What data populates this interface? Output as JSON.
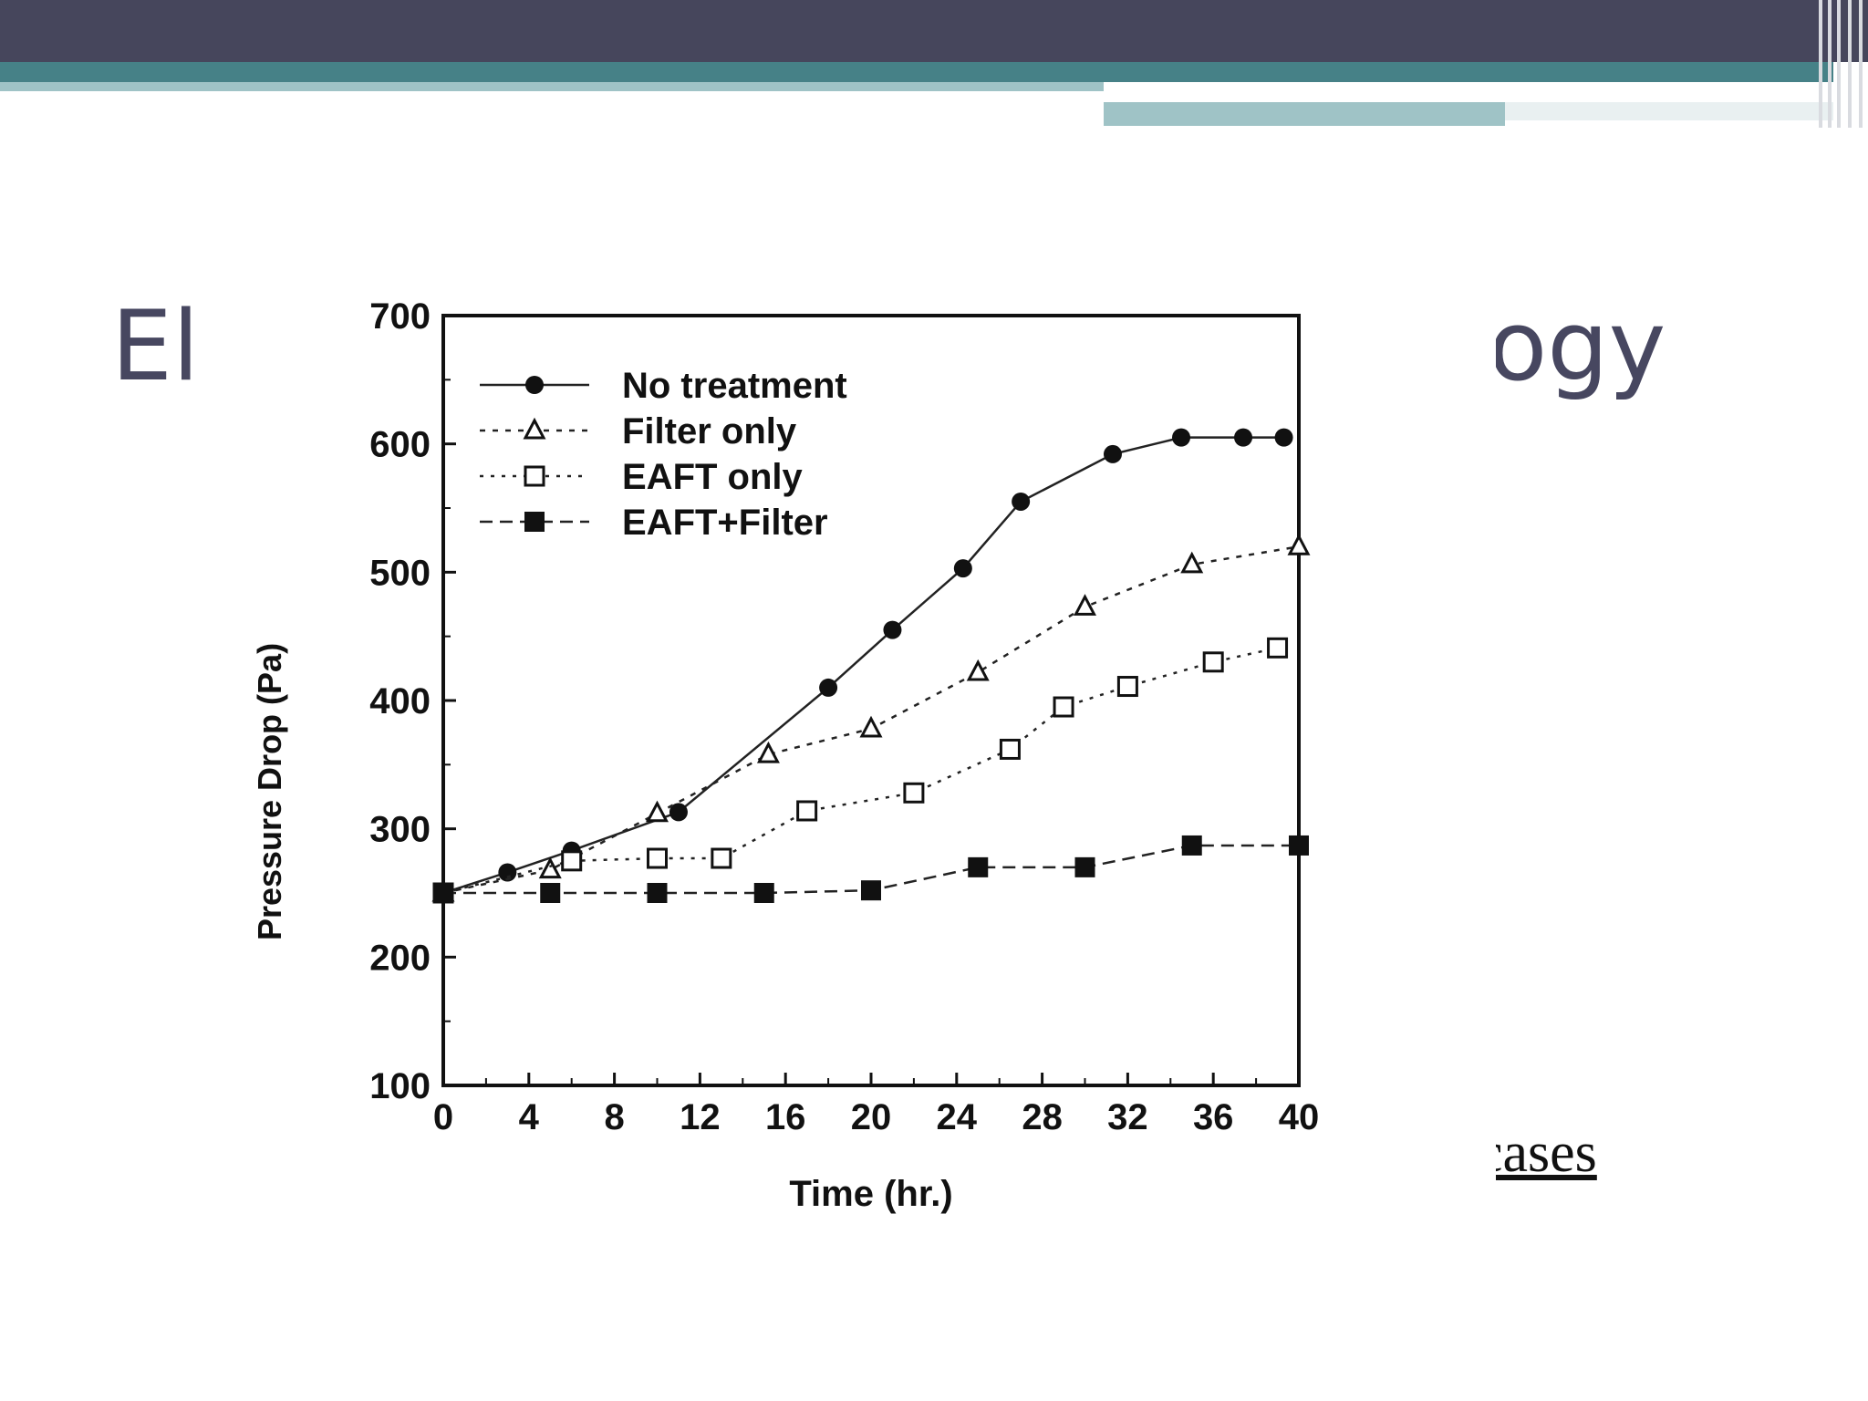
{
  "slide": {
    "title_left": "El",
    "title_right": "logy",
    "link_fragment": "cases",
    "colors": {
      "topbar": "#46465c",
      "teal": "#468187",
      "teal_light": "#9fc3c6",
      "title": "#474760"
    }
  },
  "chart_data": {
    "type": "line",
    "title": "",
    "xlabel": "Time (hr.)",
    "ylabel": "Pressure Drop (Pa)",
    "xlim": [
      0,
      40
    ],
    "ylim": [
      100,
      700
    ],
    "xticks": [
      0,
      4,
      8,
      12,
      16,
      20,
      24,
      28,
      32,
      36,
      40
    ],
    "yticks": [
      100,
      200,
      300,
      400,
      500,
      600,
      700
    ],
    "grid": false,
    "legend": "top-left",
    "series": [
      {
        "name": "No treatment",
        "marker": "filled-circle",
        "x": [
          0,
          3,
          6,
          11,
          18,
          21,
          24.3,
          27,
          31.3,
          34.5,
          37.4,
          39.3
        ],
        "y": [
          250,
          266,
          283,
          313,
          410,
          455,
          503,
          555,
          592,
          605,
          605,
          605
        ]
      },
      {
        "name": "Filter only",
        "marker": "open-triangle",
        "x": [
          0,
          5,
          10,
          15.2,
          20,
          25,
          30,
          35,
          40
        ],
        "y": [
          250,
          268,
          312,
          358,
          378,
          422,
          473,
          506,
          520
        ]
      },
      {
        "name": "EAFT only",
        "marker": "open-square",
        "x": [
          0,
          6,
          10,
          13,
          17,
          22,
          26.5,
          29,
          32,
          36,
          39
        ],
        "y": [
          250,
          275,
          277,
          277,
          314,
          328,
          362,
          395,
          411,
          430,
          441
        ]
      },
      {
        "name": "EAFT+Filter",
        "marker": "filled-square",
        "x": [
          0,
          5,
          10,
          15,
          20,
          25,
          30,
          35,
          40
        ],
        "y": [
          250,
          250,
          250,
          250,
          252,
          270,
          270,
          287,
          287
        ]
      }
    ]
  }
}
